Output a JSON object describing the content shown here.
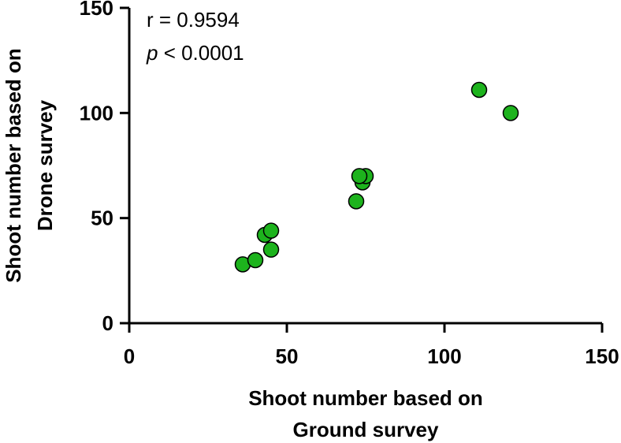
{
  "chart_data": {
    "type": "scatter",
    "title": "",
    "xlabel_lines": [
      "Shoot number based on",
      "Ground survey"
    ],
    "ylabel_lines": [
      "Shoot number based on",
      "Drone survey"
    ],
    "xlim": [
      0,
      150
    ],
    "ylim": [
      0,
      150
    ],
    "xticks": [
      0,
      50,
      100,
      150
    ],
    "yticks": [
      0,
      50,
      100,
      150
    ],
    "grid": false,
    "marker_color": "#1db31d",
    "annotations": {
      "r_text": "r = 0.9594",
      "p_symbol": "p",
      "p_rest": " < 0.0001"
    },
    "points": [
      {
        "x": 36,
        "y": 28
      },
      {
        "x": 40,
        "y": 30
      },
      {
        "x": 43,
        "y": 42
      },
      {
        "x": 45,
        "y": 44
      },
      {
        "x": 45,
        "y": 35
      },
      {
        "x": 72,
        "y": 58
      },
      {
        "x": 74,
        "y": 67
      },
      {
        "x": 75,
        "y": 70
      },
      {
        "x": 73,
        "y": 70
      },
      {
        "x": 111,
        "y": 111
      },
      {
        "x": 121,
        "y": 100
      }
    ]
  }
}
